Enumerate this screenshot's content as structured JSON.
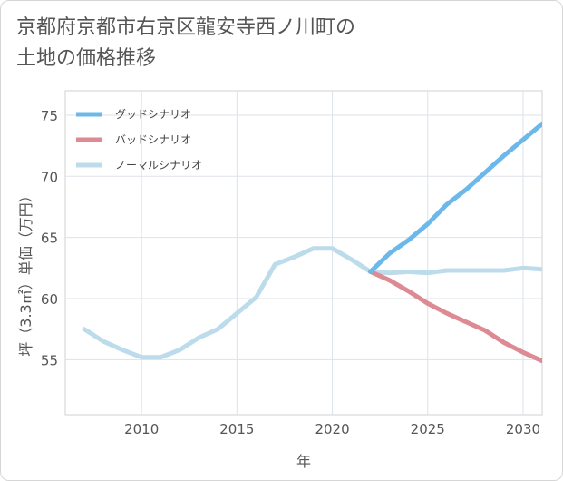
{
  "title_line1": "京都府京都市右京区龍安寺西ノ川町の",
  "title_line2": "土地の価格推移",
  "chart_data": {
    "type": "line",
    "xlabel": "年",
    "ylabel": "坪（3.3㎡）単価（万円）",
    "xlim": [
      2006,
      2031
    ],
    "ylim": [
      50.5,
      77
    ],
    "xticks": [
      2010,
      2015,
      2020,
      2025,
      2030
    ],
    "yticks": [
      55,
      60,
      65,
      70,
      75
    ],
    "grid": true,
    "legend_position": "top-left",
    "series": [
      {
        "name": "グッドシナリオ",
        "color": "#6cb8ea",
        "x": [
          2022,
          2023,
          2024,
          2025,
          2026,
          2027,
          2028,
          2029,
          2030,
          2031
        ],
        "y": [
          62.2,
          63.7,
          64.8,
          66.1,
          67.7,
          68.9,
          70.3,
          71.7,
          73.0,
          74.3
        ]
      },
      {
        "name": "バッドシナリオ",
        "color": "#de8a94",
        "x": [
          2022,
          2023,
          2024,
          2025,
          2026,
          2027,
          2028,
          2029,
          2030,
          2031
        ],
        "y": [
          62.2,
          61.5,
          60.6,
          59.6,
          58.8,
          58.1,
          57.4,
          56.4,
          55.6,
          54.9
        ]
      },
      {
        "name": "ノーマルシナリオ",
        "color": "#bcdceb",
        "x": [
          2007,
          2008,
          2009,
          2010,
          2011,
          2012,
          2013,
          2014,
          2015,
          2016,
          2017,
          2018,
          2019,
          2020,
          2021,
          2022,
          2023,
          2024,
          2025,
          2026,
          2027,
          2028,
          2029,
          2030,
          2031
        ],
        "y": [
          57.5,
          56.5,
          55.8,
          55.2,
          55.2,
          55.8,
          56.8,
          57.5,
          58.8,
          60.1,
          62.8,
          63.4,
          64.1,
          64.1,
          63.2,
          62.2,
          62.1,
          62.2,
          62.1,
          62.3,
          62.3,
          62.3,
          62.3,
          62.5,
          62.4
        ]
      }
    ]
  }
}
